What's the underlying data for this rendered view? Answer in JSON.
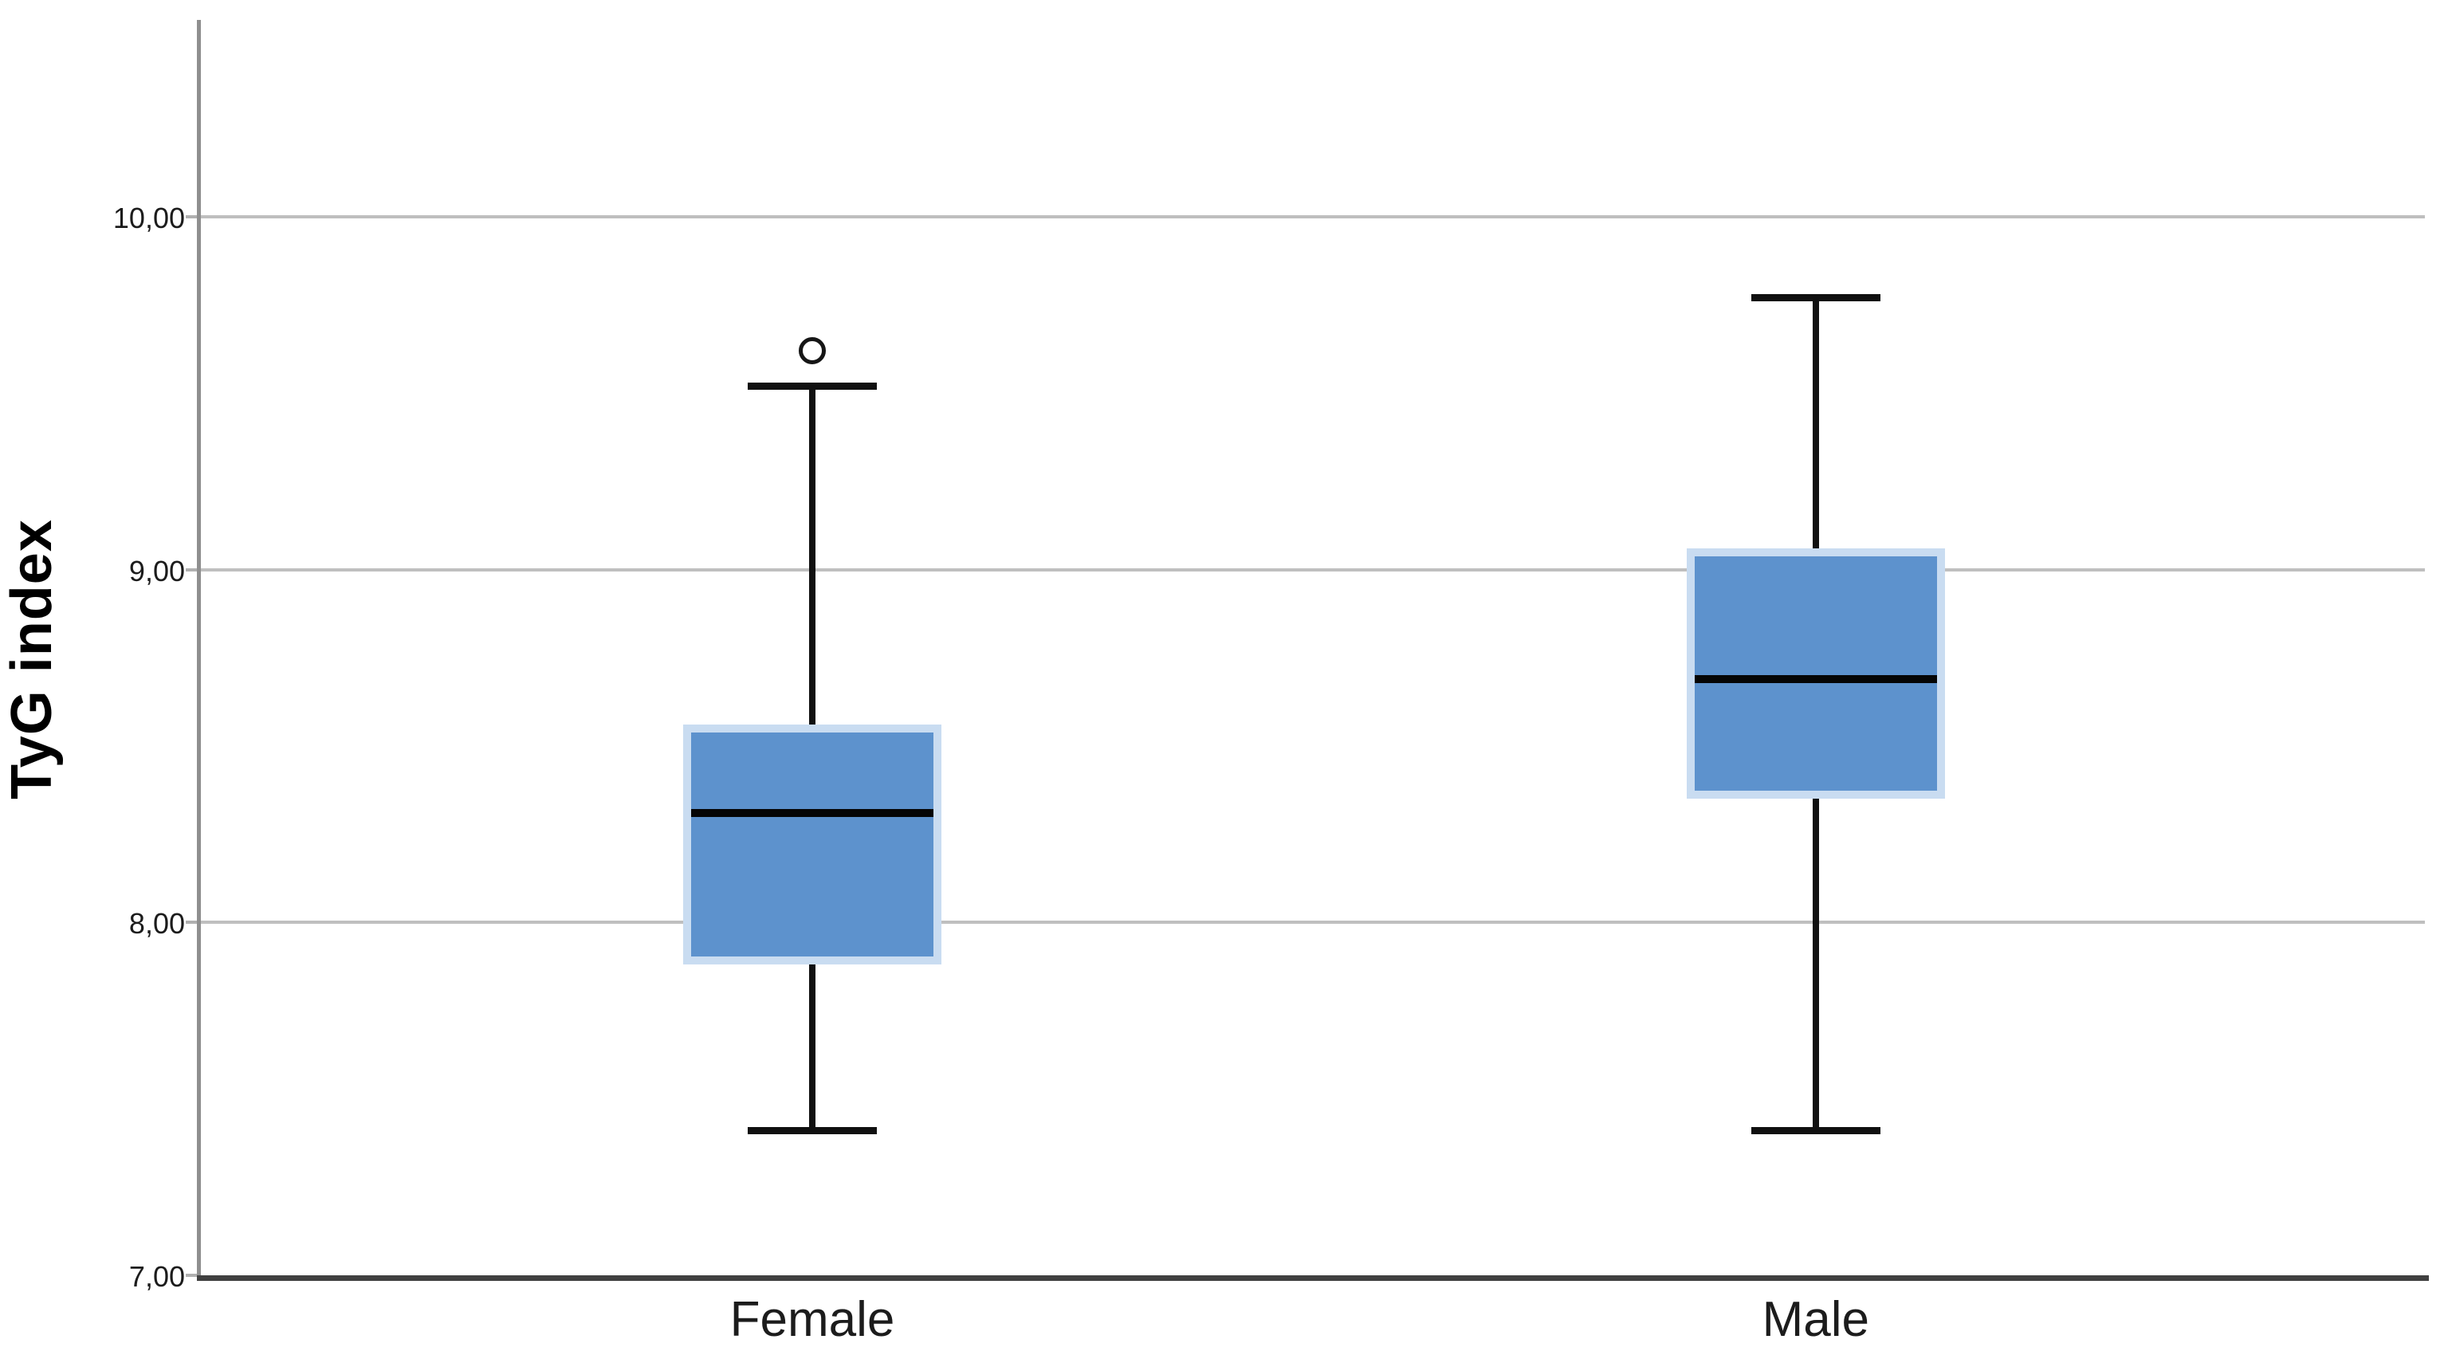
{
  "chart_data": {
    "type": "boxplot",
    "title": "",
    "xlabel": "",
    "ylabel": "TyG index",
    "categories": [
      "Female",
      "Male"
    ],
    "ylim": [
      7.0,
      10.56
    ],
    "yticks": [
      {
        "value": 7.0,
        "label": "7,00"
      },
      {
        "value": 8.0,
        "label": "8,00"
      },
      {
        "value": 9.0,
        "label": "9,00"
      },
      {
        "value": 10.0,
        "label": "10,00"
      }
    ],
    "grid": "horizontal-only",
    "legend": "none",
    "decimal_separator": ",",
    "series": [
      {
        "category": "Female",
        "whisker_min": 7.41,
        "q1": 7.88,
        "median": 8.31,
        "q3": 8.56,
        "whisker_max": 9.52,
        "outliers": [
          9.62
        ]
      },
      {
        "category": "Male",
        "whisker_min": 7.41,
        "q1": 8.35,
        "median": 8.69,
        "q3": 9.06,
        "whisker_max": 9.77,
        "outliers": []
      }
    ],
    "colors": {
      "box_fill": "#5d92cd",
      "box_border": "#c9dcf1",
      "median_line": "#050505",
      "whisker": "#101010",
      "outlier_stroke": "#161616",
      "gridline": "#bfbfbf",
      "y_axis_line": "#8f8f8f",
      "x_axis_line": "#404040",
      "text": "#1c1c1c",
      "background": "#ffffff"
    }
  }
}
